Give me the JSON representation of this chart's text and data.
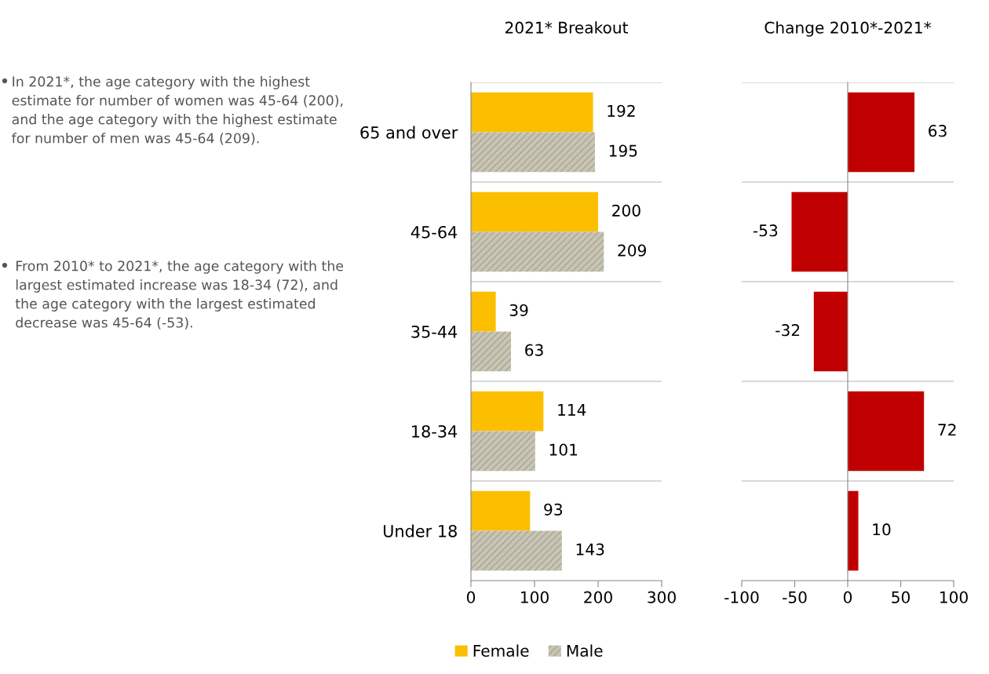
{
  "chart_data": [
    {
      "type": "other",
      "annotations": [
        "In 2021*, the age category with the highest estimate for number of women was 45-64 (200), and the age category with the highest estimate for number of men was 45-64 (209).",
        "From 2010* to 2021*, the age category with the largest estimated increase was 18-34 (72), and the age category with the largest estimated decrease was 45-64 (-53)."
      ]
    },
    {
      "type": "bar",
      "orientation": "horizontal",
      "title": "2021* Breakout",
      "categories": [
        "65 and over",
        "45-64",
        "35-44",
        "18-34",
        "Under 18"
      ],
      "series": [
        {
          "name": "Female",
          "color": "#fbbf00",
          "values": [
            192,
            200,
            39,
            114,
            93
          ]
        },
        {
          "name": "Male",
          "color": "#c9c5b4",
          "values": [
            195,
            209,
            63,
            101,
            143
          ]
        }
      ],
      "xlim": [
        0,
        300
      ],
      "xticks": [
        0,
        100,
        200,
        300
      ],
      "data_labels": true,
      "grid": "y",
      "legend": "bottom"
    },
    {
      "type": "bar",
      "orientation": "horizontal",
      "title": "Change 2010*-2021*",
      "categories": [
        null,
        null,
        null,
        null,
        null
      ],
      "values": [
        63,
        -53,
        -32,
        72,
        10
      ],
      "color": "#c00000",
      "xlim": [
        -100,
        100
      ],
      "xticks": [
        -100,
        -50,
        0,
        50,
        100
      ],
      "data_labels": true,
      "grid": "y",
      "tick_labels": "x"
    }
  ]
}
